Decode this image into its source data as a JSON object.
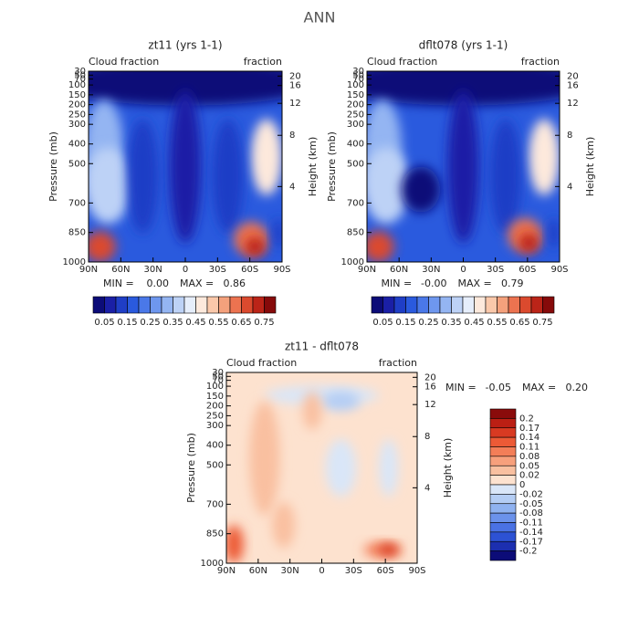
{
  "title": "ANN",
  "chart_data": [
    {
      "type": "contour",
      "title": "zt11 (yrs 1-1)",
      "subtitle_left": "Cloud fraction",
      "subtitle_right": "fraction",
      "ylabel": "Pressure (mb)",
      "y2label": "Height (km)",
      "xlim": [
        90,
        -90
      ],
      "xticks": [
        {
          "value": 90,
          "label": "90N"
        },
        {
          "value": 60,
          "label": "60N"
        },
        {
          "value": 30,
          "label": "30N"
        },
        0,
        {
          "value": -30,
          "label": "30S"
        },
        {
          "value": -60,
          "label": "60S"
        },
        {
          "value": -90,
          "label": "90S"
        }
      ],
      "ylim": [
        1000,
        30
      ],
      "yticks": [
        1000,
        850,
        700,
        500,
        400,
        300,
        250,
        200,
        150,
        100,
        70,
        50,
        30
      ],
      "y2ticks": [
        4,
        8,
        12,
        16,
        20
      ],
      "min_text": "MIN =",
      "min": {
        "value": 0,
        "label": "0.00"
      },
      "max_text": "MAX =",
      "max": 0.86,
      "colorbar": {
        "orientation": "horizontal",
        "labels": [
          0.05,
          0.15,
          0.25,
          0.35,
          0.45,
          0.55,
          0.65,
          0.75
        ],
        "colors": [
          "#0c0c78",
          "#1a1fa6",
          "#1f3ec6",
          "#2a5ade",
          "#4a78e8",
          "#6e97ee",
          "#94b5f2",
          "#bdd2f6",
          "#e6eefb",
          "#fde9dc",
          "#fac8aa",
          "#f4a17c",
          "#ec7350",
          "#db4a2e",
          "#bb2418",
          "#860a0a"
        ]
      }
    },
    {
      "type": "contour",
      "title": "dflt078 (yrs 1-1)",
      "subtitle_left": "Cloud fraction",
      "subtitle_right": "fraction",
      "ylabel": "Pressure (mb)",
      "y2label": "Height (km)",
      "xlim": [
        90,
        -90
      ],
      "xticks": [
        {
          "value": 90,
          "label": "90N"
        },
        {
          "value": 60,
          "label": "60N"
        },
        {
          "value": 30,
          "label": "30N"
        },
        0,
        {
          "value": -30,
          "label": "30S"
        },
        {
          "value": -60,
          "label": "60S"
        },
        {
          "value": -90,
          "label": "90S"
        }
      ],
      "ylim": [
        1000,
        30
      ],
      "yticks": [
        1000,
        850,
        700,
        500,
        400,
        300,
        250,
        200,
        150,
        100,
        70,
        50,
        30
      ],
      "y2ticks": [
        4,
        8,
        12,
        16,
        20
      ],
      "min_text": "MIN =",
      "min": {
        "value": 0,
        "label": "-0.00"
      },
      "max_text": "MAX =",
      "max": 0.79,
      "colorbar": {
        "orientation": "horizontal",
        "labels": [
          0.05,
          0.15,
          0.25,
          0.35,
          0.45,
          0.55,
          0.65,
          0.75
        ],
        "colors": [
          "#0c0c78",
          "#1a1fa6",
          "#1f3ec6",
          "#2a5ade",
          "#4a78e8",
          "#6e97ee",
          "#94b5f2",
          "#bdd2f6",
          "#e6eefb",
          "#fde9dc",
          "#fac8aa",
          "#f4a17c",
          "#ec7350",
          "#db4a2e",
          "#bb2418",
          "#860a0a"
        ]
      }
    },
    {
      "type": "contour",
      "title": "zt11 - dflt078",
      "subtitle_left": "Cloud fraction",
      "subtitle_right": "fraction",
      "ylabel": "Pressure (mb)",
      "y2label": "Height (km)",
      "xlim": [
        90,
        -90
      ],
      "xticks": [
        {
          "value": 90,
          "label": "90N"
        },
        {
          "value": 60,
          "label": "60N"
        },
        {
          "value": 30,
          "label": "30N"
        },
        0,
        {
          "value": -30,
          "label": "30S"
        },
        {
          "value": -60,
          "label": "60S"
        },
        {
          "value": -90,
          "label": "90S"
        }
      ],
      "ylim": [
        1000,
        30
      ],
      "yticks": [
        1000,
        850,
        700,
        500,
        400,
        300,
        250,
        200,
        150,
        100,
        70,
        50,
        30
      ],
      "y2ticks": [
        4,
        8,
        12,
        16,
        20
      ],
      "min_text": "MIN =",
      "min": -0.05,
      "max_text": "MAX =",
      "max": {
        "value": 0.2,
        "label": "0.20"
      },
      "colorbar": {
        "orientation": "vertical",
        "labels": [
          0.2,
          0.17,
          0.14,
          0.11,
          0.08,
          0.05,
          0.02,
          0,
          -0.02,
          -0.05,
          -0.08,
          -0.11,
          -0.14,
          -0.17,
          -0.2
        ],
        "colors": [
          "#8a0b0b",
          "#bb1f14",
          "#d83a22",
          "#ec5a36",
          "#f37e58",
          "#f7a07c",
          "#f9c0a0",
          "#fde2cf",
          "#d9e6f8",
          "#b4cdf4",
          "#8fb2f0",
          "#6b92eb",
          "#4a72e4",
          "#2d52d4",
          "#1c2fb0",
          "#0c0c78"
        ]
      }
    }
  ]
}
